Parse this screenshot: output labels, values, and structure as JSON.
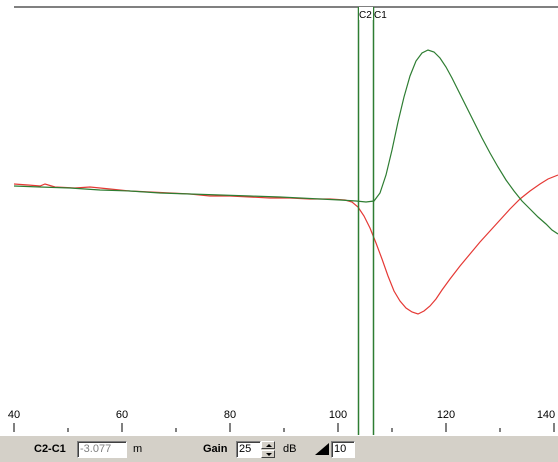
{
  "cursors": {
    "c2_label": "C2",
    "c1_label": "C1",
    "cursor_color": "#2e7d32"
  },
  "axis": {
    "ticks": [
      "40",
      "60",
      "80",
      "100",
      "120",
      "140"
    ]
  },
  "traces": {
    "green_color": "#2e7d32",
    "red_color": "#e53935"
  },
  "toolbar": {
    "delta_label": "C2-C1",
    "delta_value": "-3.077",
    "delta_unit": "m",
    "gain_label": "Gain",
    "gain_value": "25",
    "gain_unit": "dB",
    "ramp_icon": "ramp-icon",
    "ramp_value": "10"
  }
}
